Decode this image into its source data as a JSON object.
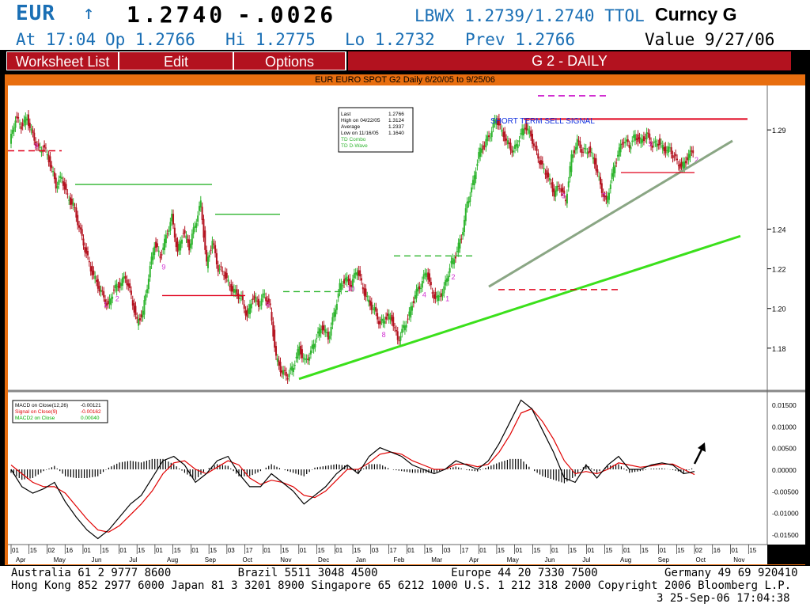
{
  "header": {
    "ticker": "EUR",
    "arrow": "↑",
    "last": "1.2740",
    "change": "-.0026",
    "bid_ask": "LBWX 1.2739/1.2740 TTOL",
    "security": "Curncy G",
    "time": "At 17:04",
    "open": "Op 1.2766",
    "high": "Hi 1.2775",
    "low": "Lo 1.2732",
    "prev": "Prev 1.2766",
    "value_date": "Value  9/27/06"
  },
  "menu": {
    "worksheet": "Worksheet List",
    "edit": "Edit",
    "options": "Options",
    "title": "G  2 - DAILY"
  },
  "chart_title": "EUR EURO SPOT G2 Daily 6/20/05 to 9/25/06",
  "stats_box": {
    "rows": [
      {
        "label": "Last",
        "value": "1.2766"
      },
      {
        "label": "High on  04/22/05",
        "value": "1.3124"
      },
      {
        "label": "Average",
        "value": "1.2337"
      },
      {
        "label": "Low on  11/16/05",
        "value": "1.1640"
      }
    ],
    "extra": [
      "TD Combo",
      "TD D-Wave"
    ]
  },
  "annotation": "SHORT TERM SELL SIGNAL",
  "macd_legend": [
    {
      "label": "MACD on Close(12,26)",
      "value": "-0.00121",
      "color": "#000000"
    },
    {
      "label": "Signal on Close(9)",
      "value": "-0.00162",
      "color": "#e00000"
    },
    {
      "label": "MACD2 on Close",
      "value": "0.00040",
      "color": "#00b000"
    }
  ],
  "colors": {
    "up_bar": "#2fb52f",
    "down_bar": "#b3121f",
    "trend_green": "#3be01b",
    "trend_gray": "#8aa684",
    "resistance": "#e0001b",
    "td_label": "#d12fd1",
    "cyan_marker": "#25d8e0",
    "brand_red": "#b3121f",
    "panel_orange": "#e86e0f",
    "header_blue": "#1a6fb5"
  },
  "chart_data": [
    {
      "type": "candlestick",
      "title": "EUR EURO SPOT G2 Daily 6/20/05 to 9/25/06",
      "ylim": [
        1.16,
        1.31
      ],
      "yticks": [
        "1.29",
        "1.24",
        "1.22",
        "1.20",
        "1.18"
      ],
      "x_month_labels": [
        "Apr",
        "May",
        "Jun",
        "Jul",
        "Aug",
        "Sep",
        "Oct",
        "Nov",
        "Dec",
        "Jan",
        "Feb",
        "Mar",
        "Apr",
        "May",
        "Jun",
        "Jul",
        "Aug",
        "Sep",
        "Oct",
        "Nov"
      ],
      "x_day_labels": [
        "01",
        "15",
        "02",
        "16",
        "01",
        "15",
        "01",
        "15",
        "01",
        "15",
        "01",
        "15",
        "03",
        "17",
        "01",
        "15",
        "01",
        "15",
        "01",
        "15",
        "03",
        "17",
        "01",
        "15",
        "03",
        "17",
        "01",
        "15",
        "01",
        "15",
        "01",
        "15",
        "01",
        "15",
        "01",
        "15",
        "01",
        "15",
        "02",
        "16",
        "01",
        "15"
      ],
      "close_path": [
        1.283,
        1.296,
        1.292,
        1.296,
        1.287,
        1.28,
        1.281,
        1.273,
        1.262,
        1.266,
        1.256,
        1.252,
        1.241,
        1.23,
        1.22,
        1.213,
        1.207,
        1.201,
        1.21,
        1.212,
        1.216,
        1.206,
        1.193,
        1.198,
        1.216,
        1.233,
        1.226,
        1.236,
        1.246,
        1.228,
        1.239,
        1.231,
        1.242,
        1.253,
        1.222,
        1.234,
        1.22,
        1.218,
        1.211,
        1.208,
        1.205,
        1.196,
        1.206,
        1.202,
        1.207,
        1.2,
        1.175,
        1.168,
        1.166,
        1.171,
        1.18,
        1.173,
        1.178,
        1.186,
        1.191,
        1.185,
        1.197,
        1.211,
        1.215,
        1.212,
        1.22,
        1.21,
        1.203,
        1.199,
        1.192,
        1.196,
        1.195,
        1.184,
        1.19,
        1.197,
        1.207,
        1.212,
        1.219,
        1.207,
        1.205,
        1.21,
        1.221,
        1.227,
        1.236,
        1.253,
        1.263,
        1.278,
        1.283,
        1.288,
        1.296,
        1.289,
        1.283,
        1.279,
        1.286,
        1.292,
        1.287,
        1.278,
        1.271,
        1.266,
        1.258,
        1.262,
        1.254,
        1.276,
        1.284,
        1.279,
        1.28,
        1.274,
        1.262,
        1.253,
        1.267,
        1.278,
        1.285,
        1.282,
        1.287,
        1.284,
        1.288,
        1.282,
        1.284,
        1.28,
        1.28,
        1.275,
        1.271,
        1.276,
        1.28
      ],
      "trend_lines": [
        {
          "name": "main-support",
          "from": [
            "Nov 15 05",
            1.164
          ],
          "to": [
            "Oct 01 06",
            1.237
          ]
        },
        {
          "name": "short-support",
          "from": [
            "Apr 17 06",
            1.211
          ],
          "to": [
            "Oct 01 06",
            1.285
          ]
        }
      ],
      "levels": [
        {
          "name": "short-term-sell-resistance",
          "value": 1.295
        }
      ]
    },
    {
      "type": "line",
      "title": "MACD",
      "ylim": [
        -0.017,
        0.017
      ],
      "yticks": [
        "0.01500",
        "0.01000",
        "0.00500",
        "0.00000",
        "-0.00500",
        "-0.01000",
        "-0.01500"
      ],
      "series": [
        {
          "name": "MACD on Close(12,26)",
          "values": [
            0.0,
            -0.004,
            -0.0055,
            -0.0045,
            -0.003,
            -0.0075,
            -0.011,
            -0.014,
            -0.016,
            -0.014,
            -0.011,
            -0.008,
            -0.006,
            -0.002,
            0.002,
            0.003,
            0.001,
            -0.003,
            -0.001,
            0.002,
            0.003,
            -0.001,
            -0.004,
            -0.004,
            -0.001,
            -0.003,
            -0.005,
            -0.008,
            -0.006,
            -0.004,
            -0.001,
            0.001,
            -0.001,
            0.003,
            0.005,
            0.004,
            0.003,
            0.001,
            0.0,
            -0.001,
            0.0,
            0.002,
            0.001,
            0.0,
            0.002,
            0.006,
            0.011,
            0.016,
            0.014,
            0.009,
            0.004,
            -0.002,
            -0.003,
            0.001,
            -0.002,
            0.001,
            0.003,
            0.0,
            0.0,
            0.001,
            0.0015,
            0.001,
            -0.001,
            -0.0005
          ]
        },
        {
          "name": "Signal on Close(9)",
          "values": [
            0.001,
            -0.001,
            -0.003,
            -0.004,
            -0.004,
            -0.0055,
            -0.0085,
            -0.0115,
            -0.014,
            -0.0145,
            -0.013,
            -0.0105,
            -0.008,
            -0.005,
            -0.001,
            0.0015,
            0.002,
            0.0,
            -0.001,
            0.0005,
            0.002,
            0.001,
            -0.002,
            -0.0035,
            -0.0025,
            -0.003,
            -0.004,
            -0.006,
            -0.0065,
            -0.005,
            -0.0025,
            0.0,
            0.0,
            0.0015,
            0.0035,
            0.004,
            0.0035,
            0.002,
            0.001,
            0.0,
            0.0,
            0.0012,
            0.0012,
            0.0006,
            0.0012,
            0.004,
            0.008,
            0.013,
            0.014,
            0.011,
            0.007,
            0.002,
            -0.001,
            -0.0005,
            -0.001,
            0.0,
            0.0015,
            0.001,
            0.0005,
            0.0008,
            0.0012,
            0.0012,
            0.0,
            -0.0012
          ]
        },
        {
          "name": "MACD2 on Close",
          "values": []
        }
      ]
    }
  ],
  "footer": {
    "line1": "Australia 61 2 9777 8600          Brazil 5511 3048 4500           Europe 44 20 7330 7500          Germany 49 69 920410",
    "line2": "Hong Kong 852 2977 6000 Japan 81 3 3201 8900 Singapore 65 6212 1000 U.S. 1 212 318 2000 Copyright 2006 Bloomberg L.P.",
    "line3": "3 25-Sep-06 17:04:38"
  }
}
